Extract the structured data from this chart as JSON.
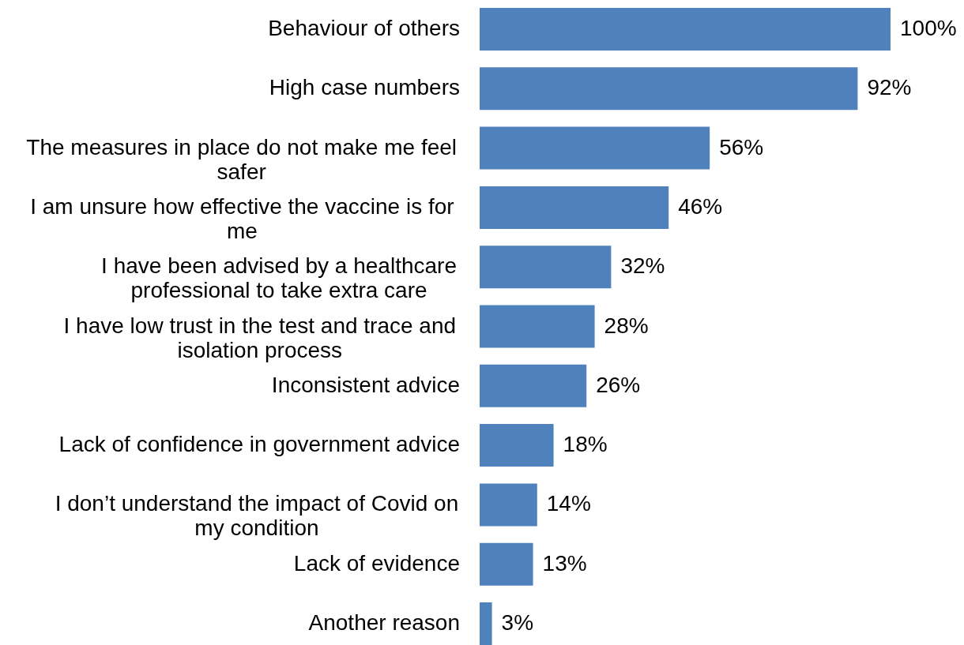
{
  "chart_data": {
    "type": "bar",
    "orientation": "horizontal",
    "categories": [
      "Behaviour of others",
      "High case numbers",
      "The measures in place do not make me feel safer",
      "I am unsure how effective the vaccine is for me",
      "I have been advised by a healthcare professional to take extra care",
      "I have low trust in the test and trace and isolation process",
      "Inconsistent advice",
      "Lack of confidence in government advice",
      "I don’t understand the impact of Covid on my condition",
      "Lack of evidence",
      "Another reason"
    ],
    "values": [
      100,
      92,
      56,
      46,
      32,
      28,
      26,
      18,
      14,
      13,
      3
    ],
    "value_labels": [
      "100%",
      "92%",
      "56%",
      "46%",
      "32%",
      "28%",
      "26%",
      "18%",
      "14%",
      "13%",
      "3%"
    ],
    "color": "#4f81bd",
    "tick_labels": "y"
  }
}
